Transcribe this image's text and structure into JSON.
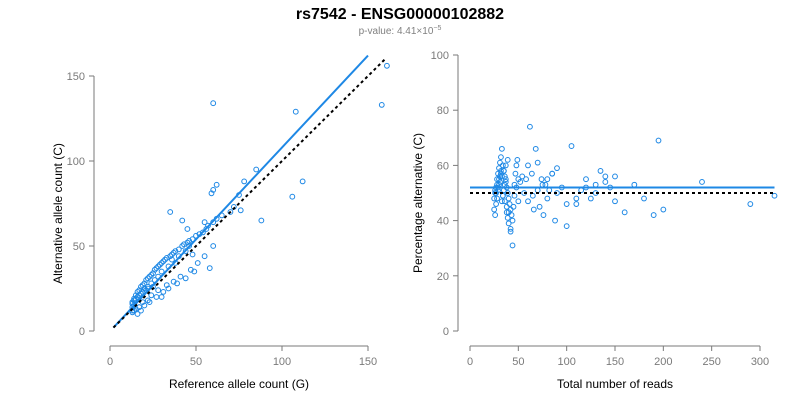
{
  "page": {
    "title": "rs7542 - ENSG00000102882",
    "subtitle_prefix": "p-value: 4.41×10",
    "subtitle_exponent": "−5"
  },
  "chart_data": [
    {
      "type": "scatter",
      "xlabel": "Reference allele count (G)",
      "ylabel": "Alternative allele count (C)",
      "xlim": [
        0,
        150
      ],
      "ylim": [
        0,
        150
      ],
      "xticks": [
        0,
        50,
        100,
        150
      ],
      "yticks": [
        0,
        50,
        100,
        150
      ],
      "grid": false,
      "point_color": "#1e88e5",
      "lines": [
        {
          "kind": "fit",
          "style": "solid",
          "color": "#1e88e5",
          "x": [
            2,
            150
          ],
          "y": [
            2,
            162
          ]
        },
        {
          "kind": "reference",
          "style": "dotted",
          "color": "#000000",
          "x": [
            2,
            160
          ],
          "y": [
            2,
            160
          ]
        }
      ],
      "x": [
        60,
        108,
        161,
        158,
        112,
        106,
        88,
        62,
        60,
        59,
        55,
        45,
        58,
        78,
        85,
        75,
        76,
        35,
        42,
        46,
        60,
        48,
        44,
        40,
        38,
        36,
        34,
        30,
        28,
        26,
        24,
        22,
        20,
        18,
        16,
        14,
        14,
        13,
        13,
        13,
        14,
        15,
        16,
        17,
        18,
        19,
        20,
        21,
        22,
        23,
        24,
        25,
        26,
        27,
        28,
        29,
        30,
        31,
        32,
        33,
        35,
        36,
        37,
        38,
        40,
        42,
        43,
        45,
        46,
        48,
        50,
        52,
        54,
        56,
        57,
        60,
        62,
        65,
        70,
        72,
        30,
        22,
        17,
        14,
        13,
        15,
        19,
        24,
        28,
        33,
        37,
        41,
        47,
        51,
        55,
        16,
        18,
        20,
        23,
        27,
        31,
        34,
        39,
        44,
        49,
        13,
        14,
        15,
        16,
        17,
        18,
        19,
        21,
        22,
        25
      ],
      "y": [
        134,
        129,
        156,
        133,
        88,
        79,
        65,
        86,
        83,
        81,
        64,
        60,
        37,
        88,
        95,
        80,
        71,
        70,
        65,
        50,
        50,
        45,
        47,
        44,
        40,
        42,
        38,
        35,
        32,
        30,
        28,
        26,
        25,
        22,
        20,
        18,
        15,
        12,
        14,
        16,
        19,
        21,
        23,
        24,
        26,
        27,
        28,
        30,
        31,
        32,
        33,
        34,
        36,
        37,
        38,
        39,
        40,
        41,
        42,
        43,
        44,
        45,
        46,
        47,
        48,
        50,
        51,
        52,
        53,
        54,
        56,
        57,
        58,
        60,
        62,
        64,
        66,
        68,
        70,
        73,
        20,
        18,
        14,
        12,
        11,
        13,
        17,
        21,
        24,
        27,
        29,
        32,
        36,
        40,
        44,
        10,
        12,
        15,
        17,
        20,
        23,
        25,
        28,
        31,
        35,
        17,
        18,
        19,
        20,
        21,
        22,
        23,
        24,
        25,
        26
      ]
    },
    {
      "type": "scatter",
      "xlabel": "Total number of reads",
      "ylabel": "Percentage alternative (C)",
      "xlim": [
        0,
        300
      ],
      "ylim": [
        0,
        100
      ],
      "xticks": [
        0,
        50,
        100,
        150,
        200,
        250,
        300
      ],
      "yticks": [
        0,
        20,
        40,
        60,
        80,
        100
      ],
      "grid": false,
      "point_color": "#1e88e5",
      "lines": [
        {
          "kind": "fit",
          "style": "solid",
          "color": "#1e88e5",
          "x": [
            0,
            315
          ],
          "y": [
            52,
            52
          ]
        },
        {
          "kind": "reference",
          "style": "dotted",
          "color": "#000000",
          "x": [
            0,
            315
          ],
          "y": [
            50,
            50
          ]
        }
      ],
      "x": [
        25,
        26,
        27,
        28,
        29,
        30,
        31,
        32,
        33,
        34,
        35,
        36,
        37,
        38,
        39,
        40,
        41,
        42,
        43,
        44,
        45,
        46,
        47,
        48,
        49,
        50,
        25,
        26,
        27,
        28,
        29,
        30,
        31,
        32,
        33,
        34,
        35,
        36,
        37,
        38,
        39,
        40,
        42,
        44,
        46,
        48,
        50,
        52,
        54,
        56,
        58,
        60,
        62,
        64,
        66,
        68,
        70,
        72,
        74,
        76,
        78,
        80,
        82,
        85,
        88,
        90,
        95,
        100,
        105,
        110,
        115,
        120,
        125,
        130,
        135,
        140,
        145,
        150,
        160,
        170,
        180,
        190,
        195,
        200,
        240,
        290,
        315,
        26,
        28,
        30,
        32,
        34,
        36,
        38,
        40,
        27,
        29,
        31,
        33,
        35,
        37,
        39,
        60,
        65,
        70,
        75,
        80,
        85,
        90,
        100,
        110,
        120,
        130,
        140,
        150,
        42
      ],
      "y": [
        48,
        50,
        52,
        55,
        57,
        59,
        61,
        63,
        66,
        60,
        58,
        56,
        54,
        52,
        50,
        48,
        46,
        44,
        42,
        40,
        45,
        53,
        57,
        60,
        62,
        55,
        44,
        42,
        46,
        48,
        51,
        53,
        56,
        58,
        47,
        49,
        51,
        53,
        55,
        43,
        41,
        39,
        37,
        31,
        49,
        52,
        47,
        54,
        56,
        50,
        55,
        60,
        74,
        57,
        44,
        66,
        61,
        45,
        55,
        42,
        53,
        48,
        51,
        57,
        40,
        50,
        52,
        38,
        67,
        46,
        51,
        55,
        48,
        53,
        58,
        56,
        52,
        47,
        43,
        53,
        48,
        42,
        69,
        44,
        54,
        46,
        49,
        51,
        53,
        55,
        57,
        49,
        47,
        45,
        43,
        50,
        52,
        54,
        56,
        58,
        60,
        62,
        47,
        49,
        51,
        53,
        55,
        57,
        59,
        46,
        48,
        52,
        50,
        54,
        56,
        36
      ]
    }
  ]
}
